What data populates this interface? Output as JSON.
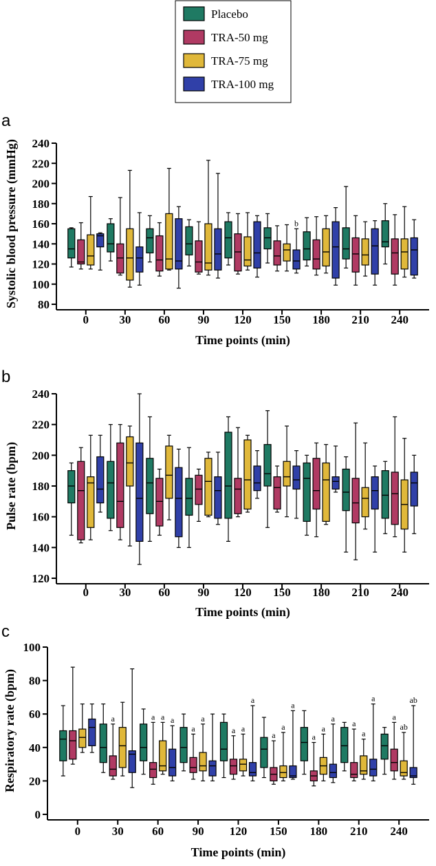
{
  "legend": {
    "items": [
      {
        "label": "Placebo",
        "color": "#1f7a63"
      },
      {
        "label": "TRA-50 mg",
        "color": "#b03a63"
      },
      {
        "label": "TRA-75 mg",
        "color": "#e0b83a"
      },
      {
        "label": "TRA-100 mg",
        "color": "#3040a8"
      }
    ]
  },
  "chart_data": [
    {
      "type": "box",
      "panel_label": "a",
      "ylabel": "Systolic blood pressure (mmHg)",
      "xlabel": "Time points (min)",
      "ylim": [
        80,
        240
      ],
      "yticks": [
        80,
        100,
        120,
        140,
        160,
        180,
        200,
        220,
        240
      ],
      "categories": [
        "0",
        "30",
        "60",
        "90",
        "120",
        "150",
        "180",
        "210",
        "240"
      ],
      "series": [
        {
          "name": "Placebo",
          "boxes": [
            [
              117,
              126,
              135,
              155,
              156
            ],
            [
              123,
              132,
              140,
              160,
              165
            ],
            [
              122,
              131,
              146,
              155,
              168
            ],
            [
              118,
              129,
              140,
              157,
              164
            ],
            [
              119,
              126,
              146,
              162,
              171
            ],
            [
              121,
              135,
              146,
              156,
              170
            ],
            [
              118,
              124,
              135,
              152,
              166
            ],
            [
              116,
              125,
              135,
              156,
              197
            ],
            [
              120,
              137,
              142,
              163,
              180
            ]
          ]
        },
        {
          "name": "TRA-50 mg",
          "boxes": [
            [
              115,
              120,
              122,
              144,
              161
            ],
            [
              109,
              111,
              126,
              140,
              186
            ],
            [
              108,
              113,
              124,
              148,
              161
            ],
            [
              110,
              112,
              122,
              143,
              162
            ],
            [
              110,
              113,
              132,
              150,
              170
            ],
            [
              113,
              119,
              128,
              143,
              158
            ],
            [
              109,
              115,
              125,
              144,
              167
            ],
            [
              99,
              112,
              130,
              146,
              168
            ],
            [
              99,
              110,
              131,
              145,
              169
            ]
          ]
        },
        {
          "name": "TRA-75 mg",
          "boxes": [
            [
              115,
              119,
              128,
              149,
              187
            ],
            [
              97,
              104,
              126,
              155,
              213
            ],
            [
              114,
              115,
              125,
              170,
              215
            ],
            [
              109,
              114,
              121,
              160,
              223
            ],
            [
              114,
              118,
              124,
              147,
              171
            ],
            [
              113,
              123,
              134,
              140,
              159
            ],
            [
              111,
              118,
              132,
              155,
              168
            ],
            [
              108,
              119,
              129,
              145,
              162
            ],
            [
              107,
              115,
              132,
              145,
              177
            ]
          ]
        },
        {
          "name": "TRA-100 mg",
          "boxes": [
            [
              114,
              137,
              148,
              150,
              151
            ],
            [
              99,
              112,
              126,
              137,
              171
            ],
            [
              96,
              115,
              123,
              165,
              177
            ],
            [
              106,
              114,
              130,
              155,
              210
            ],
            [
              107,
              116,
              131,
              162,
              168
            ],
            [
              111,
              115,
              123,
              134,
              155
            ],
            [
              99,
              106,
              137,
              162,
              176
            ],
            [
              99,
              110,
              138,
              155,
              163
            ],
            [
              106,
              109,
              134,
              146,
              164
            ]
          ]
        }
      ],
      "annotations": [
        {
          "category": "150",
          "series": "TRA-100 mg",
          "text": "b"
        }
      ]
    },
    {
      "type": "box",
      "panel_label": "b",
      "ylabel": "Pulse rate  (bpm)",
      "xlabel": "Time points (min)",
      "ylim": [
        120,
        240
      ],
      "yticks": [
        120,
        140,
        160,
        180,
        200,
        220,
        240
      ],
      "categories": [
        "0",
        "30",
        "60",
        "90",
        "120",
        "150",
        "180",
        "210",
        "240"
      ],
      "series": [
        {
          "name": "Placebo",
          "boxes": [
            [
              148,
              169,
              180,
              190,
              195
            ],
            [
              151,
              159,
              182,
              196,
              220
            ],
            [
              144,
              162,
              182,
              198,
              225
            ],
            [
              140,
              161,
              172,
              185,
              205
            ],
            [
              144,
              159,
              180,
              215,
              225
            ],
            [
              153,
              180,
              188,
              207,
              229
            ],
            [
              148,
              157,
              185,
              195,
              200
            ],
            [
              137,
              164,
              176,
              191,
              199
            ],
            [
              149,
              159,
              174,
              190,
              196
            ]
          ]
        },
        {
          "name": "TRA-50 mg",
          "boxes": [
            [
              143,
              145,
              177,
              196,
              205
            ],
            [
              145,
              153,
              170,
              208,
              220
            ],
            [
              148,
              154,
              170,
              185,
              191
            ],
            [
              157,
              168,
              178,
              187,
              191
            ],
            [
              160,
              162,
              178,
              185,
              218
            ],
            [
              163,
              165,
              179,
              186,
              193
            ],
            [
              147,
              165,
              177,
              198,
              208
            ],
            [
              132,
              156,
              169,
              185,
              221
            ],
            [
              147,
              155,
              175,
              189,
              225
            ]
          ]
        },
        {
          "name": "TRA-75 mg",
          "boxes": [
            [
              145,
              153,
              182,
              186,
              213
            ],
            [
              141,
              180,
              195,
              212,
              219
            ],
            [
              158,
              172,
              187,
              206,
              213
            ],
            [
              160,
              161,
              183,
              198,
              202
            ],
            [
              163,
              165,
              184,
              210,
              213
            ],
            [
              160,
              180,
              186,
              196,
              219
            ],
            [
              155,
              157,
              184,
              195,
              207
            ],
            [
              152,
              160,
              172,
              179,
              208
            ],
            [
              137,
              152,
              168,
              184,
              211
            ]
          ]
        },
        {
          "name": "TRA-100 mg",
          "boxes": [
            [
              163,
              169,
              178,
              199,
              213
            ],
            [
              129,
              144,
              172,
              208,
              240
            ],
            [
              140,
              147,
              172,
              192,
              204
            ],
            [
              155,
              159,
              177,
              186,
              202
            ],
            [
              172,
              177,
              182,
              193,
              203
            ],
            [
              159,
              178,
              184,
              193,
              203
            ],
            [
              176,
              178,
              183,
              186,
              206
            ],
            [
              137,
              165,
              177,
              186,
              193
            ],
            [
              149,
              167,
              182,
              189,
              200
            ]
          ]
        }
      ]
    },
    {
      "type": "box",
      "panel_label": "c",
      "ylabel": "Respiratory rate (bpm)",
      "xlabel": "Time points (min)",
      "ylim": [
        0,
        100
      ],
      "yticks": [
        0,
        20,
        40,
        60,
        80,
        100
      ],
      "categories": [
        "0",
        "30",
        "60",
        "90",
        "120",
        "150",
        "180",
        "210",
        "240"
      ],
      "series": [
        {
          "name": "Placebo",
          "boxes": [
            [
              23,
              32,
              45,
              50,
              65
            ],
            [
              25,
              31,
              40,
              54,
              66
            ],
            [
              24,
              32,
              40,
              54,
              63
            ],
            [
              26,
              31,
              40,
              52,
              60
            ],
            [
              22,
              32,
              39,
              55,
              60
            ],
            [
              22,
              28,
              39,
              46,
              58
            ],
            [
              24,
              32,
              43,
              52,
              62
            ],
            [
              26,
              31,
              41,
              52,
              55
            ],
            [
              24,
              33,
              41,
              48,
              52
            ]
          ]
        },
        {
          "name": "TRA-50 mg",
          "boxes": [
            [
              30,
              33,
              44,
              50,
              88
            ],
            [
              21,
              23,
              27,
              35,
              54
            ],
            [
              18,
              22,
              27,
              31,
              55
            ],
            [
              21,
              25,
              28,
              34,
              48
            ],
            [
              21,
              24,
              29,
              33,
              47
            ],
            [
              18,
              20,
              24,
              28,
              44
            ],
            [
              17,
              20,
              23,
              26,
              43
            ],
            [
              20,
              22,
              24,
              31,
              51
            ],
            [
              21,
              26,
              31,
              39,
              55
            ]
          ]
        },
        {
          "name": "TRA-75 mg",
          "boxes": [
            [
              37,
              40,
              46,
              51,
              66
            ],
            [
              23,
              28,
              41,
              52,
              67
            ],
            [
              24,
              26,
              29,
              44,
              55
            ],
            [
              20,
              26,
              29,
              37,
              54
            ],
            [
              23,
              26,
              30,
              33,
              48
            ],
            [
              20,
              22,
              25,
              29,
              49
            ],
            [
              20,
              24,
              29,
              34,
              48
            ],
            [
              21,
              24,
              26,
              35,
              45
            ],
            [
              21,
              23,
              25,
              32,
              49
            ]
          ]
        },
        {
          "name": "TRA-100 mg",
          "boxes": [
            [
              37,
              41,
              52,
              57,
              66
            ],
            [
              16,
              25,
              36,
              38,
              87
            ],
            [
              20,
              23,
              28,
              39,
              53
            ],
            [
              20,
              23,
              29,
              32,
              60
            ],
            [
              20,
              23,
              25,
              31,
              65
            ],
            [
              21,
              22,
              23,
              29,
              62
            ],
            [
              19,
              22,
              25,
              30,
              54
            ],
            [
              20,
              23,
              27,
              33,
              66
            ],
            [
              18,
              22,
              23,
              28,
              65
            ]
          ]
        }
      ],
      "annotations": [
        {
          "category": "30",
          "series": "TRA-50 mg",
          "text": "a"
        },
        {
          "category": "60",
          "series": "TRA-50 mg",
          "text": "a"
        },
        {
          "category": "60",
          "series": "TRA-75 mg",
          "text": "a"
        },
        {
          "category": "60",
          "series": "TRA-100 mg",
          "text": "a"
        },
        {
          "category": "90",
          "series": "TRA-50 mg",
          "text": "a"
        },
        {
          "category": "90",
          "series": "TRA-75 mg",
          "text": "a"
        },
        {
          "category": "120",
          "series": "TRA-50 mg",
          "text": "a"
        },
        {
          "category": "120",
          "series": "TRA-75 mg",
          "text": "a"
        },
        {
          "category": "120",
          "series": "TRA-100 mg",
          "text": "a"
        },
        {
          "category": "150",
          "series": "TRA-50 mg",
          "text": "a"
        },
        {
          "category": "150",
          "series": "TRA-75 mg",
          "text": "a"
        },
        {
          "category": "150",
          "series": "TRA-100 mg",
          "text": "a"
        },
        {
          "category": "180",
          "series": "TRA-50 mg",
          "text": "a"
        },
        {
          "category": "180",
          "series": "TRA-75 mg",
          "text": "a"
        },
        {
          "category": "180",
          "series": "TRA-100 mg",
          "text": "a"
        },
        {
          "category": "210",
          "series": "TRA-50 mg",
          "text": "a"
        },
        {
          "category": "210",
          "series": "TRA-75 mg",
          "text": "a"
        },
        {
          "category": "210",
          "series": "TRA-100 mg",
          "text": "a"
        },
        {
          "category": "240",
          "series": "TRA-50 mg",
          "text": "a"
        },
        {
          "category": "240",
          "series": "TRA-75 mg",
          "text": "ab"
        },
        {
          "category": "240",
          "series": "TRA-100 mg",
          "text": "ab"
        }
      ]
    }
  ]
}
